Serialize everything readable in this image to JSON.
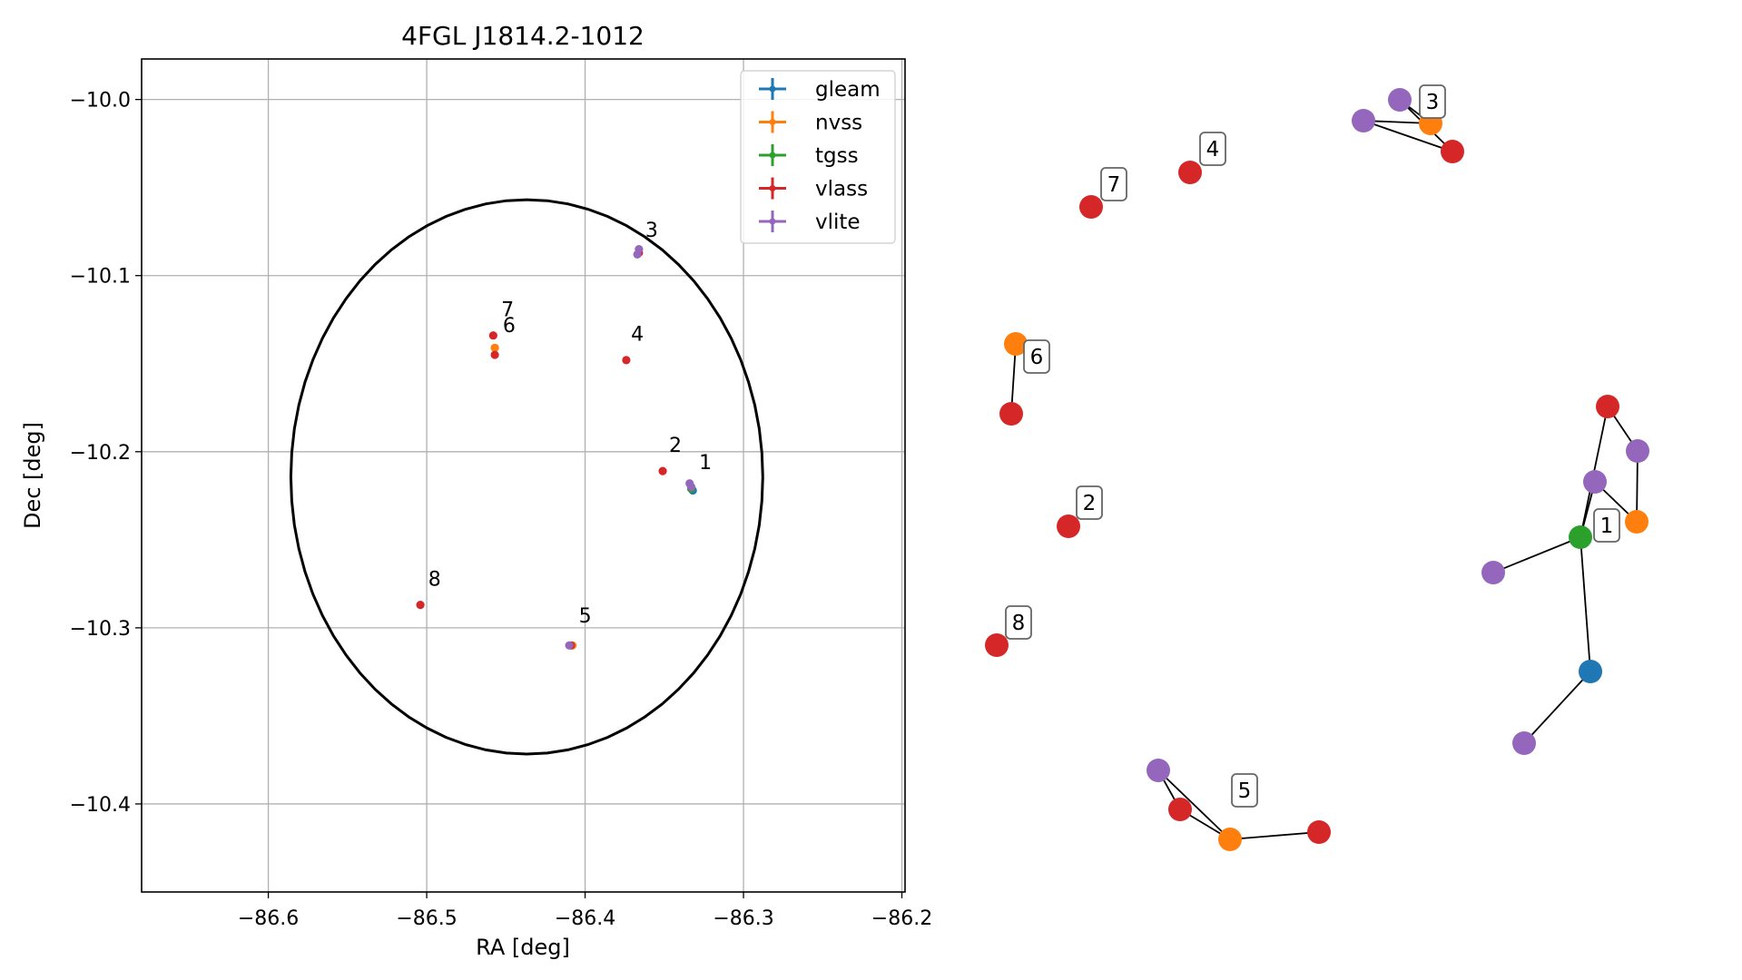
{
  "colors": {
    "gleam": "#1f77b4",
    "nvss": "#ff7f0e",
    "tgss": "#2ca02c",
    "vlass": "#d62728",
    "vlite": "#9467bd",
    "grid": "#b0b0b0",
    "ellipse": "#000000"
  },
  "chart_data": [
    {
      "type": "scatter",
      "title": "4FGL J1814.2-1012",
      "xlabel": "RA [deg]",
      "ylabel": "Dec [deg]",
      "xlim": [
        -86.68,
        -86.198
      ],
      "ylim": [
        -10.45,
        -9.977
      ],
      "xticks": [
        -86.6,
        -86.5,
        -86.4,
        -86.3,
        -86.2
      ],
      "xtick_labels": [
        "−86.6",
        "−86.5",
        "−86.4",
        "−86.3",
        "−86.2"
      ],
      "yticks": [
        -10.0,
        -10.1,
        -10.2,
        -10.3,
        -10.4
      ],
      "ytick_labels": [
        "−10.0",
        "−10.1",
        "−10.2",
        "−10.3",
        "−10.4"
      ],
      "grid": true,
      "legend_position": "top-right",
      "ellipse": {
        "center": [
          -86.4368,
          -10.2143
        ],
        "semi_axes": [
          0.149,
          0.1574
        ]
      },
      "series": [
        {
          "name": "gleam",
          "points": [
            [
              -86.332,
              -10.222
            ]
          ]
        },
        {
          "name": "nvss",
          "points": [
            [
              -86.457,
              -10.141
            ],
            [
              -86.408,
              -10.31
            ]
          ]
        },
        {
          "name": "tgss",
          "points": [
            [
              -86.333,
              -10.221
            ]
          ]
        },
        {
          "name": "vlass",
          "points": [
            [
              -86.458,
              -10.134
            ],
            [
              -86.457,
              -10.145
            ],
            [
              -86.374,
              -10.148
            ],
            [
              -86.351,
              -10.211
            ],
            [
              -86.504,
              -10.287
            ],
            [
              -86.409,
              -10.31
            ],
            [
              -86.366,
              -10.087
            ]
          ]
        },
        {
          "name": "vlite",
          "points": [
            [
              -86.334,
              -10.218
            ],
            [
              -86.333,
              -10.22
            ],
            [
              -86.366,
              -10.085
            ],
            [
              -86.367,
              -10.088
            ],
            [
              -86.41,
              -10.31
            ]
          ]
        }
      ],
      "cluster_labels": [
        {
          "text": "1",
          "x": -86.328,
          "y": -10.21
        },
        {
          "text": "2",
          "x": -86.347,
          "y": -10.2
        },
        {
          "text": "3",
          "x": -86.362,
          "y": -10.078
        },
        {
          "text": "4",
          "x": -86.371,
          "y": -10.137
        },
        {
          "text": "5",
          "x": -86.404,
          "y": -10.297
        },
        {
          "text": "6",
          "x": -86.452,
          "y": -10.132
        },
        {
          "text": "7",
          "x": -86.453,
          "y": -10.123
        },
        {
          "text": "8",
          "x": -86.499,
          "y": -10.276
        }
      ]
    }
  ],
  "legend": [
    {
      "label": "gleam",
      "color_key": "gleam"
    },
    {
      "label": "nvss",
      "color_key": "nvss"
    },
    {
      "label": "tgss",
      "color_key": "tgss"
    },
    {
      "label": "vlass",
      "color_key": "vlass"
    },
    {
      "label": "vlite",
      "color_key": "vlite"
    }
  ],
  "graph": {
    "nodes": [
      {
        "id": "g1",
        "survey": "gleam"
      },
      {
        "id": "t1",
        "survey": "tgss"
      },
      {
        "id": "n1",
        "survey": "nvss"
      },
      {
        "id": "v1a",
        "survey": "vlass"
      },
      {
        "id": "l1a",
        "survey": "vlite"
      },
      {
        "id": "l1b",
        "survey": "vlite"
      },
      {
        "id": "l1c",
        "survey": "vlite"
      },
      {
        "id": "l1d",
        "survey": "vlite"
      },
      {
        "id": "v2",
        "survey": "vlass"
      },
      {
        "id": "l3a",
        "survey": "vlite"
      },
      {
        "id": "l3b",
        "survey": "vlite"
      },
      {
        "id": "n3",
        "survey": "nvss"
      },
      {
        "id": "v3",
        "survey": "vlass"
      },
      {
        "id": "v4",
        "survey": "vlass"
      },
      {
        "id": "l5",
        "survey": "vlite"
      },
      {
        "id": "v5a",
        "survey": "vlass"
      },
      {
        "id": "n5",
        "survey": "nvss"
      },
      {
        "id": "v5b",
        "survey": "vlass"
      },
      {
        "id": "n6",
        "survey": "nvss"
      },
      {
        "id": "v6",
        "survey": "vlass"
      },
      {
        "id": "v7",
        "survey": "vlass"
      },
      {
        "id": "v8",
        "survey": "vlass"
      }
    ],
    "edges": [
      [
        "t1",
        "g1"
      ],
      [
        "t1",
        "l1c"
      ],
      [
        "t1",
        "l1a"
      ],
      [
        "t1",
        "v1a"
      ],
      [
        "l1a",
        "n1"
      ],
      [
        "n1",
        "l1b"
      ],
      [
        "l1b",
        "v1a"
      ],
      [
        "g1",
        "l1d"
      ],
      [
        "l3b",
        "n3"
      ],
      [
        "l3b",
        "v3"
      ],
      [
        "l3a",
        "n3"
      ],
      [
        "l3a",
        "v3"
      ],
      [
        "l5",
        "v5a"
      ],
      [
        "l5",
        "n5"
      ],
      [
        "v5a",
        "n5"
      ],
      [
        "n5",
        "v5b"
      ],
      [
        "n6",
        "v6"
      ]
    ],
    "labels": [
      "1",
      "2",
      "3",
      "4",
      "5",
      "6",
      "7",
      "8"
    ]
  }
}
